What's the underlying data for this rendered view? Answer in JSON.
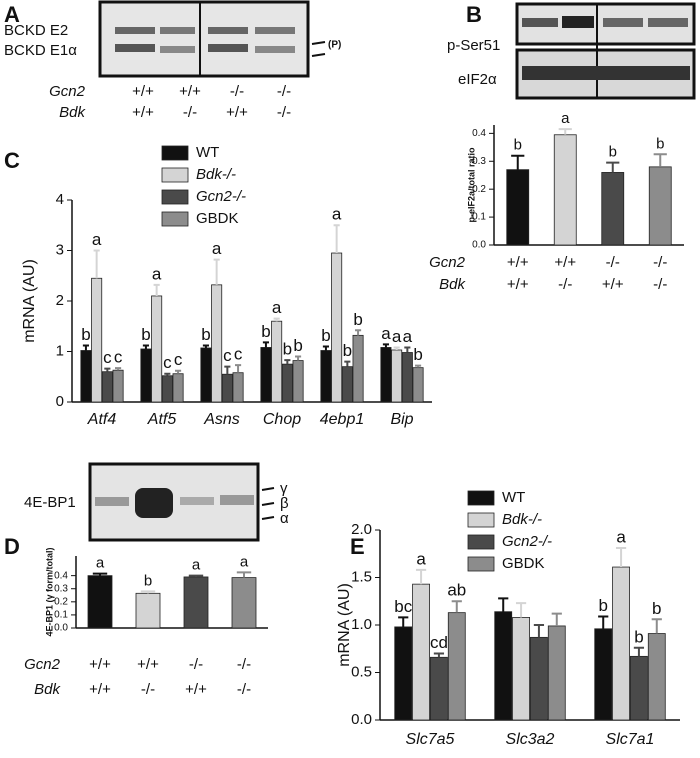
{
  "panel_labels": [
    "A",
    "B",
    "C",
    "D",
    "E"
  ],
  "blots": {
    "A": {
      "bands": [
        "BCKD E2",
        "BCKD E1α"
      ],
      "marker": "(P)",
      "rows": [
        {
          "name": "Gcn2",
          "labels": [
            "+/+",
            "+/+",
            "-/-",
            "-/-"
          ]
        },
        {
          "name": "Bdk",
          "labels": [
            "+/+",
            "-/-",
            "+/+",
            "-/-"
          ]
        }
      ]
    },
    "B": {
      "bands": [
        "p-Ser51",
        "eIF2α"
      ]
    },
    "D": {
      "bands": [
        "4E-BP1"
      ],
      "forms": [
        "γ",
        "β",
        "α"
      ]
    }
  },
  "chart_data": [
    {
      "type": "bar",
      "ylabel": "p-eIF2a/total ratio",
      "category_rows": [
        {
          "name": "Gcn2",
          "labels": [
            "+/+",
            "+/+",
            "-/-",
            "-/-"
          ]
        },
        {
          "name": "Bdk",
          "labels": [
            "+/+",
            "-/-",
            "+/+",
            "-/-"
          ]
        }
      ],
      "values": [
        0.27,
        0.395,
        0.26,
        0.28
      ],
      "errors": [
        0.05,
        0.02,
        0.035,
        0.045
      ],
      "letters": [
        "b",
        "a",
        "b",
        "b"
      ],
      "colors": [
        "#111111",
        "#d4d4d4",
        "#4a4a4a",
        "#8c8c8c"
      ],
      "ylim": [
        0,
        0.43
      ],
      "yticks": [
        {
          "value": 0,
          "label": "0.0"
        },
        0.1,
        0.2,
        0.3,
        0.4
      ]
    },
    {
      "type": "grouped_bar",
      "ylabel": "mRNA (AU)",
      "categories": [
        "Atf4",
        "Atf5",
        "Asns",
        "Chop",
        "4ebp1",
        "Bip"
      ],
      "series": [
        {
          "name": "WT",
          "color": "#111111",
          "values": [
            1.02,
            1.05,
            1.07,
            1.08,
            1.02,
            1.08
          ],
          "errors": [
            0.1,
            0.07,
            0.05,
            0.1,
            0.08,
            0.06
          ],
          "letters": [
            "b",
            "b",
            "b",
            "b",
            "b",
            "a"
          ]
        },
        {
          "name": "Bdk-/-",
          "color": "#d4d4d4",
          "values": [
            2.45,
            2.1,
            2.32,
            1.6,
            2.95,
            1.03
          ],
          "errors": [
            0.55,
            0.22,
            0.5,
            0.05,
            0.55,
            0.05
          ],
          "letters": [
            "a",
            "a",
            "a",
            "a",
            "a",
            "a"
          ]
        },
        {
          "name": "Gcn2-/-",
          "color": "#4a4a4a",
          "values": [
            0.6,
            0.52,
            0.55,
            0.75,
            0.7,
            0.98
          ],
          "errors": [
            0.06,
            0.04,
            0.15,
            0.08,
            0.1,
            0.1
          ],
          "letters": [
            "c",
            "c",
            "c",
            "b",
            "b",
            "a"
          ]
        },
        {
          "name": "GBDK",
          "color": "#8c8c8c",
          "values": [
            0.63,
            0.56,
            0.58,
            0.82,
            1.32,
            0.68
          ],
          "errors": [
            0.04,
            0.06,
            0.15,
            0.08,
            0.1,
            0.04
          ],
          "letters": [
            "c",
            "c",
            "c",
            "b",
            "b",
            "b"
          ]
        }
      ],
      "ylim": [
        0,
        4
      ],
      "yticks": [
        0,
        1,
        2,
        3,
        4
      ]
    },
    {
      "type": "bar",
      "ylabel": "4E-BP1 (γ form/total)",
      "category_rows": [
        {
          "name": "Gcn2",
          "labels": [
            "+/+",
            "+/+",
            "-/-",
            "-/-"
          ]
        },
        {
          "name": "Bdk",
          "labels": [
            "+/+",
            "-/-",
            "+/+",
            "-/-"
          ]
        }
      ],
      "values": [
        0.4,
        0.265,
        0.39,
        0.385
      ],
      "errors": [
        0.015,
        0.015,
        0.01,
        0.04
      ],
      "letters": [
        "a",
        "b",
        "a",
        "a"
      ],
      "colors": [
        "#111111",
        "#d4d4d4",
        "#4a4a4a",
        "#8c8c8c"
      ],
      "ylim": [
        0,
        0.55
      ],
      "yticks": [
        {
          "value": 0,
          "label": "0.0"
        },
        0.1,
        0.2,
        0.3,
        0.4
      ]
    },
    {
      "type": "grouped_bar",
      "ylabel": "mRNA (AU)",
      "categories": [
        "Slc7a5",
        "Slc3a2",
        "Slc7a1"
      ],
      "series": [
        {
          "name": "WT",
          "color": "#111111",
          "values": [
            0.98,
            1.14,
            0.96
          ],
          "errors": [
            0.1,
            0.14,
            0.13
          ],
          "letters": [
            "bc",
            null,
            "b"
          ]
        },
        {
          "name": "Bdk-/-",
          "color": "#d4d4d4",
          "values": [
            1.43,
            1.08,
            1.61
          ],
          "errors": [
            0.15,
            0.15,
            0.2
          ],
          "letters": [
            "a",
            null,
            "a"
          ]
        },
        {
          "name": "Gcn2-/-",
          "color": "#4a4a4a",
          "values": [
            0.66,
            0.87,
            0.67
          ],
          "errors": [
            0.04,
            0.13,
            0.09
          ],
          "letters": [
            "cd",
            null,
            "b"
          ]
        },
        {
          "name": "GBDK",
          "color": "#8c8c8c",
          "values": [
            1.13,
            0.99,
            0.91
          ],
          "errors": [
            0.12,
            0.13,
            0.15
          ],
          "letters": [
            "ab",
            null,
            "b"
          ]
        }
      ],
      "ylim": [
        0,
        2
      ],
      "yticks": [
        {
          "value": 0,
          "label": "0.0"
        },
        0.5,
        {
          "value": 1,
          "label": "1.0"
        },
        1.5,
        {
          "value": 2,
          "label": "2.0"
        }
      ]
    }
  ]
}
